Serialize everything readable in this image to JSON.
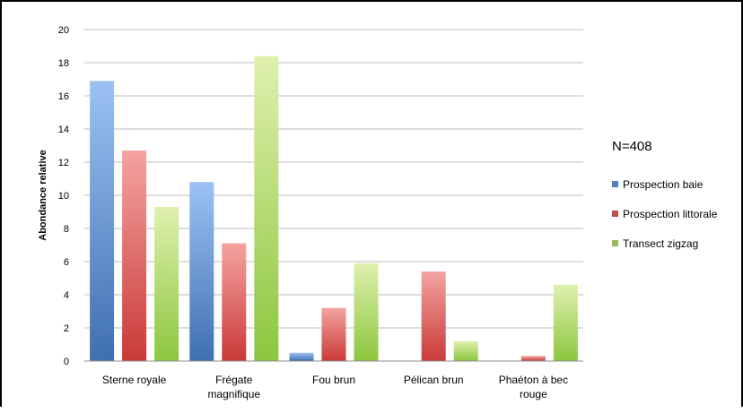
{
  "chart_data": {
    "type": "bar",
    "title": "",
    "xlabel": "",
    "ylabel": "Abondance relative",
    "ylim": [
      0,
      20
    ],
    "yticks": [
      0,
      2,
      4,
      6,
      8,
      10,
      12,
      14,
      16,
      18,
      20
    ],
    "grid": true,
    "legend_position": "right",
    "annotation": "N=408",
    "categories": [
      [
        "Sterne royale"
      ],
      [
        "Frégate",
        "magnifique"
      ],
      [
        "Fou brun"
      ],
      [
        "Pélican brun"
      ],
      [
        "Phaéton à bec",
        "rouge"
      ]
    ],
    "series": [
      {
        "name": "Prospection baie",
        "color": "#4f81bd",
        "values": [
          16.9,
          10.8,
          0.5,
          0,
          0
        ]
      },
      {
        "name": "Prospection littorale",
        "color": "#c0504d",
        "values": [
          12.7,
          7.1,
          3.2,
          5.4,
          0.3
        ]
      },
      {
        "name": "Transect zigzag",
        "color": "#9bbb59",
        "values": [
          9.3,
          18.4,
          5.9,
          1.2,
          4.6
        ]
      }
    ]
  }
}
